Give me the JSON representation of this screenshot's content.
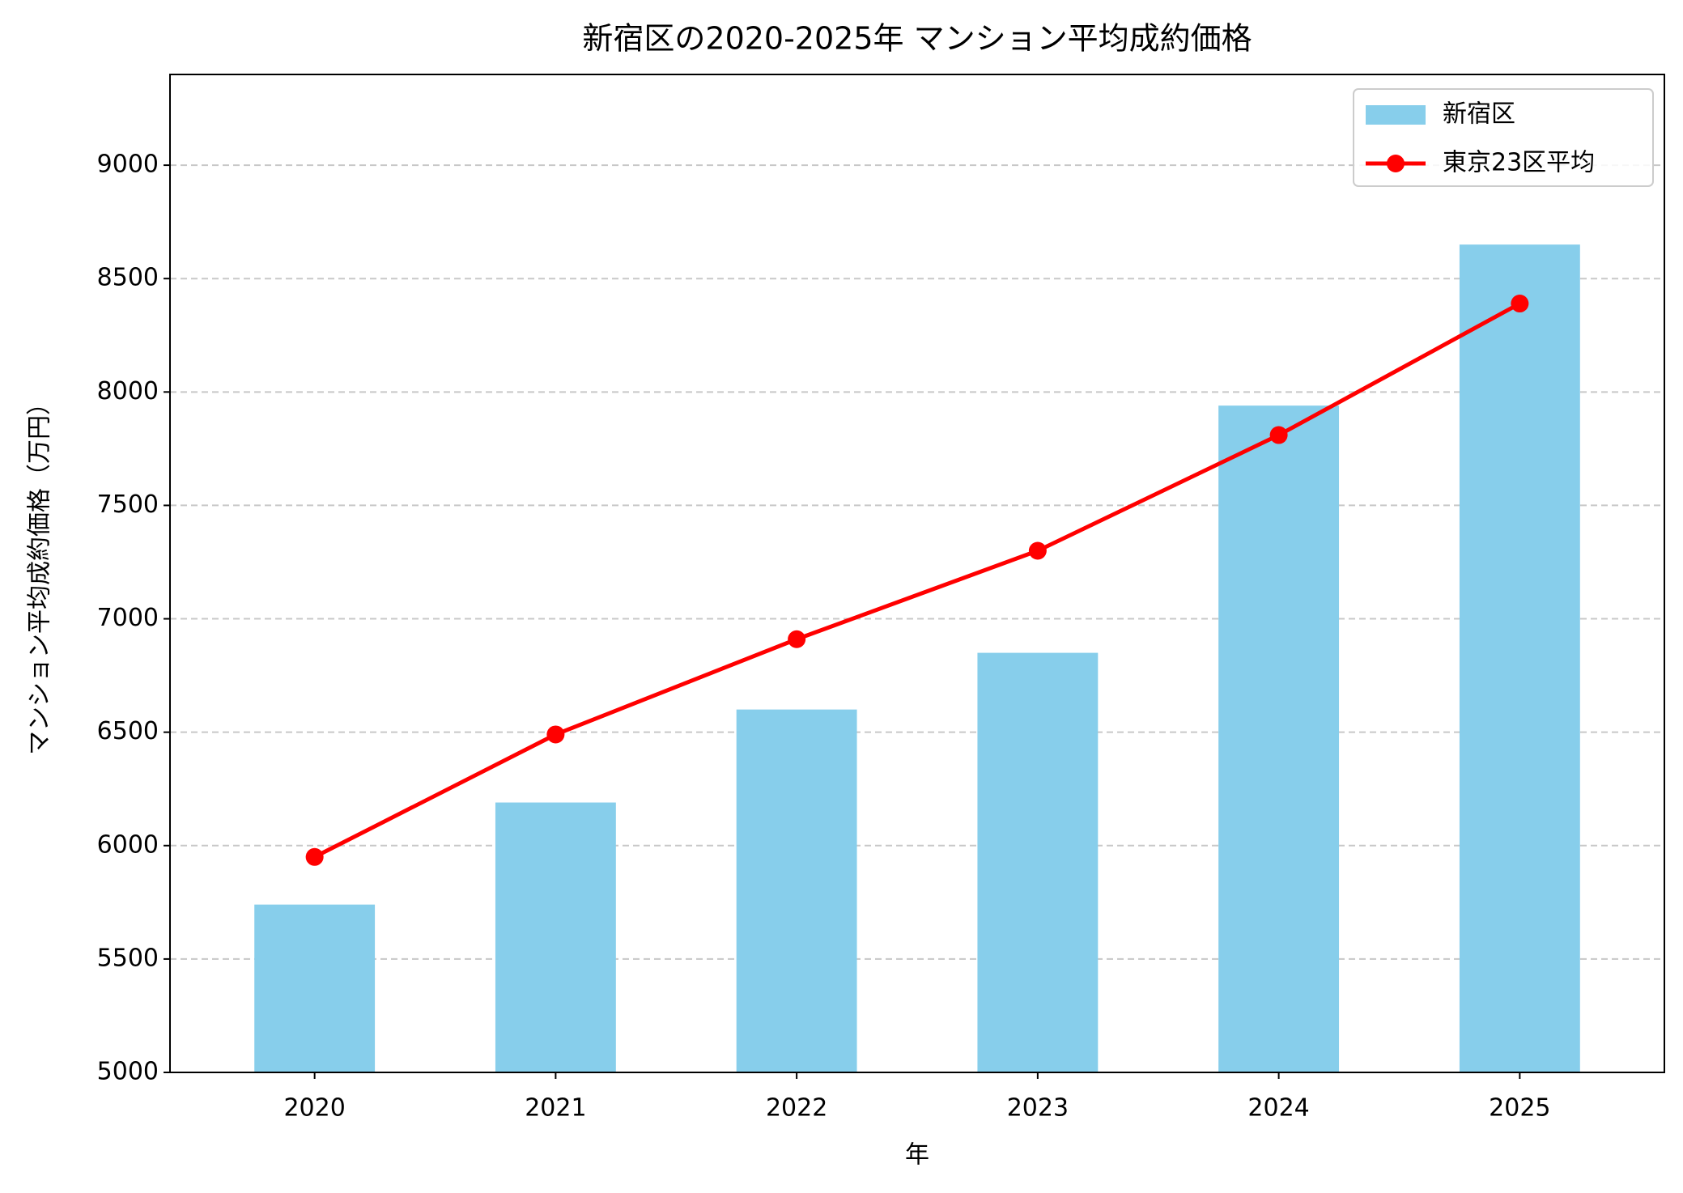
{
  "chart_data": {
    "type": "bar",
    "title": "新宿区の2020-2025年 マンション平均成約価格",
    "xlabel": "年",
    "ylabel": "マンション平均成約価格（万円）",
    "categories": [
      "2020",
      "2021",
      "2022",
      "2023",
      "2024",
      "2025"
    ],
    "series": [
      {
        "name": "新宿区",
        "type": "bar",
        "color": "#87ceeb",
        "values": [
          5740,
          6190,
          6600,
          6850,
          7940,
          8650
        ]
      },
      {
        "name": "東京23区平均",
        "type": "line",
        "color": "#ff0000",
        "values": [
          5950,
          6490,
          6910,
          7300,
          7810,
          8390
        ]
      }
    ],
    "ylim": [
      5000,
      9400
    ],
    "yticks": [
      5000,
      5500,
      6000,
      6500,
      7000,
      7500,
      8000,
      8500,
      9000
    ],
    "grid": true,
    "legend": "upper right"
  }
}
